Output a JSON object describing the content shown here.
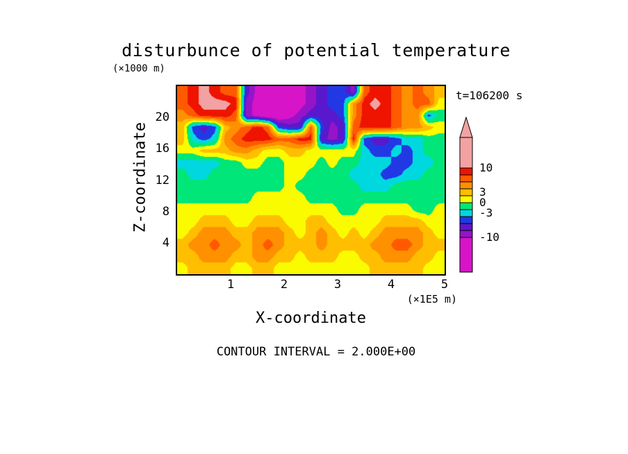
{
  "title": "disturbunce of potential temperature",
  "annotations": {
    "y_unit": "(×1000 m)",
    "x_unit": "(×1E5 m)",
    "time_label": "t=106200 s",
    "contour_interval": "CONTOUR INTERVAL = 2.000E+00"
  },
  "chart_data": {
    "type": "heatmap",
    "title": "disturbunce of potential temperature",
    "xlabel": "X-coordinate",
    "ylabel": "Z-coordinate",
    "x_unit": "(×1E5 m)",
    "y_unit": "(×1000 m)",
    "time_annotation": "t=106200 s",
    "contour_interval_label": "CONTOUR INTERVAL = 2.000E+00",
    "contour_interval": 2.0,
    "xlim": [
      0,
      5
    ],
    "ylim": [
      0,
      24
    ],
    "x_ticks": [
      1,
      2,
      3,
      4,
      5
    ],
    "y_ticks": [
      4,
      8,
      12,
      16,
      20
    ],
    "legend_position": "right-colorbar",
    "color_scale": {
      "thresholds": [
        10,
        8,
        6,
        4,
        2,
        0,
        -2,
        -4,
        -6,
        -8,
        -10
      ],
      "colors_high_to_low": [
        "#f2a2a2",
        "#ee1400",
        "#ff5a00",
        "#ff9000",
        "#ffbe00",
        "#fbfb00",
        "#00e678",
        "#00d8e0",
        "#2238e4",
        "#5a18cc",
        "#9614c8",
        "#d714c8"
      ],
      "tick_labels": [
        "10",
        "3",
        "0",
        "-3",
        "-10"
      ],
      "tick_values": [
        10,
        3,
        0,
        -3,
        -10
      ]
    },
    "grid": {
      "nx": 25,
      "ny": 16,
      "x_range": [
        0,
        5
      ],
      "z_range": [
        0,
        24
      ],
      "order": "rows top to bottom (z=24 down to z=0), columns left to right (x=0 to x=5)",
      "values": [
        [
          7,
          9,
          11,
          9,
          7,
          7,
          -7,
          -11,
          -13,
          -13,
          -13,
          -11,
          -9,
          -7,
          -5,
          -5,
          -9,
          7,
          9,
          9,
          7,
          5,
          7,
          5,
          3
        ],
        [
          7,
          9,
          11,
          11,
          11,
          9,
          -9,
          -11,
          -13,
          -13,
          -13,
          -11,
          -9,
          -7,
          -5,
          -5,
          5,
          9,
          11,
          9,
          7,
          5,
          7,
          7,
          1
        ],
        [
          5,
          7,
          9,
          9,
          9,
          7,
          -9,
          -11,
          -13,
          -13,
          -11,
          -9,
          -7,
          -7,
          -7,
          -5,
          5,
          9,
          9,
          9,
          7,
          5,
          5,
          -5,
          -1
        ],
        [
          3,
          -5,
          -7,
          -5,
          3,
          5,
          7,
          9,
          7,
          -5,
          -7,
          -7,
          7,
          -5,
          -9,
          -7,
          7,
          9,
          9,
          9,
          7,
          5,
          5,
          3,
          1
        ],
        [
          3,
          -3,
          -5,
          -3,
          5,
          7,
          9,
          9,
          9,
          7,
          7,
          9,
          9,
          -7,
          -9,
          -7,
          9,
          -5,
          -7,
          -7,
          -5,
          -3,
          -3,
          -1,
          -1
        ],
        [
          1,
          1,
          3,
          3,
          3,
          5,
          5,
          3,
          1,
          1,
          3,
          3,
          1,
          1,
          1,
          1,
          1,
          -3,
          -5,
          -5,
          -3,
          -5,
          -3,
          -1,
          -1
        ],
        [
          -3,
          -3,
          -3,
          -3,
          -1,
          -1,
          1,
          1,
          -1,
          -1,
          1,
          1,
          1,
          -1,
          1,
          -1,
          -1,
          -3,
          -3,
          -3,
          -5,
          -5,
          -3,
          -3,
          -1
        ],
        [
          -1,
          -3,
          -3,
          -1,
          -1,
          -1,
          -1,
          -1,
          -1,
          -1,
          1,
          1,
          -1,
          -1,
          -1,
          -1,
          -3,
          -3,
          -3,
          -5,
          -5,
          -3,
          -3,
          -1,
          -1
        ],
        [
          -1,
          -1,
          -1,
          -1,
          -1,
          -1,
          -1,
          -1,
          -1,
          -1,
          1,
          -1,
          -1,
          -1,
          -1,
          -1,
          -1,
          -3,
          -3,
          -3,
          -1,
          -1,
          -1,
          -1,
          -1
        ],
        [
          -1,
          -1,
          -1,
          -1,
          -1,
          -1,
          -1,
          1,
          1,
          1,
          1,
          1,
          -1,
          -1,
          -1,
          -1,
          -1,
          -1,
          -1,
          -1,
          -1,
          -1,
          -1,
          -1,
          -1
        ],
        [
          1,
          1,
          1,
          1,
          1,
          1,
          1,
          1,
          1,
          1,
          1,
          1,
          1,
          1,
          1,
          -1,
          -1,
          1,
          1,
          1,
          1,
          1,
          -1,
          -1,
          1
        ],
        [
          1,
          1,
          3,
          3,
          3,
          1,
          1,
          3,
          3,
          3,
          1,
          1,
          3,
          3,
          1,
          1,
          1,
          1,
          1,
          3,
          3,
          3,
          3,
          1,
          1
        ],
        [
          1,
          3,
          5,
          5,
          5,
          3,
          3,
          5,
          5,
          5,
          3,
          1,
          3,
          5,
          3,
          1,
          3,
          1,
          3,
          5,
          5,
          5,
          5,
          3,
          1
        ],
        [
          3,
          5,
          5,
          7,
          5,
          5,
          3,
          5,
          7,
          5,
          3,
          3,
          3,
          5,
          3,
          3,
          3,
          3,
          5,
          5,
          7,
          7,
          5,
          3,
          3
        ],
        [
          3,
          3,
          5,
          5,
          5,
          3,
          3,
          5,
          5,
          3,
          3,
          1,
          3,
          3,
          3,
          1,
          1,
          3,
          3,
          5,
          5,
          5,
          3,
          3,
          1
        ],
        [
          1,
          3,
          3,
          3,
          3,
          1,
          1,
          3,
          3,
          1,
          1,
          1,
          1,
          1,
          1,
          1,
          1,
          1,
          3,
          3,
          3,
          3,
          3,
          1,
          1
        ]
      ]
    }
  }
}
